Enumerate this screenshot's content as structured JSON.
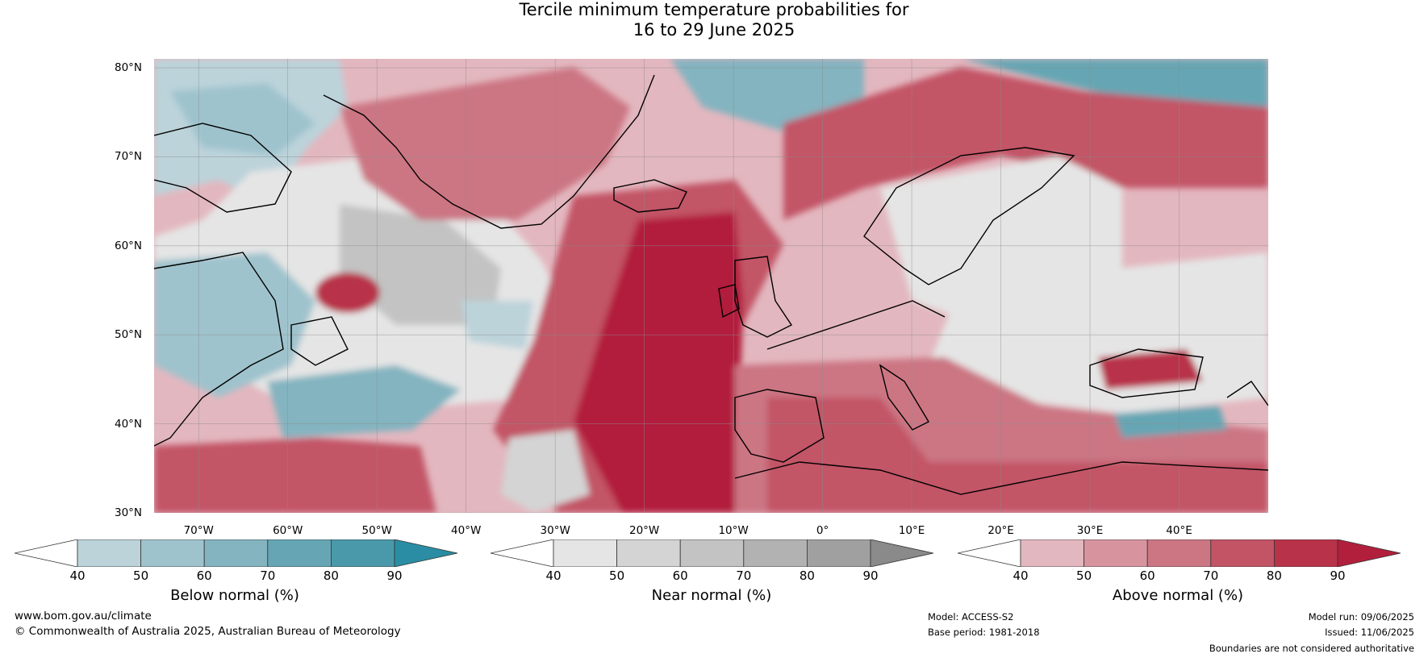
{
  "title_line1": "Tercile minimum temperature probabilities for",
  "title_line2": "16 to 29 June 2025",
  "lat_labels": [
    "80°N",
    "70°N",
    "60°N",
    "50°N",
    "40°N",
    "30°N"
  ],
  "lon_labels": [
    "70°W",
    "60°W",
    "50°W",
    "40°W",
    "30°W",
    "20°W",
    "10°W",
    "0°",
    "10°E",
    "20°E",
    "30°E",
    "40°E"
  ],
  "map_extent": {
    "lon_min": -75,
    "lon_max": 50,
    "lat_min": 30,
    "lat_max": 81
  },
  "colorbars": [
    {
      "label": "Below normal (%)",
      "ticks": [
        "40",
        "50",
        "60",
        "70",
        "80",
        "90"
      ],
      "colors": [
        "#ffffff",
        "#bcd3da",
        "#9fc3cd",
        "#83b4c0",
        "#66a6b4",
        "#4999ab",
        "#2a8da3"
      ]
    },
    {
      "label": "Near normal (%)",
      "ticks": [
        "40",
        "50",
        "60",
        "70",
        "80",
        "90"
      ],
      "colors": [
        "#ffffff",
        "#e5e5e5",
        "#d4d4d4",
        "#c3c3c3",
        "#b2b2b2",
        "#a0a0a0",
        "#8a8a8a"
      ]
    },
    {
      "label": "Above normal (%)",
      "ticks": [
        "40",
        "50",
        "60",
        "70",
        "80",
        "90"
      ],
      "colors": [
        "#ffffff",
        "#e3b7bf",
        "#d7949f",
        "#cc7683",
        "#c25466",
        "#b8334a",
        "#b21f3c"
      ]
    }
  ],
  "footer": {
    "website": "www.bom.gov.au/climate",
    "copyright": "© Commonwealth of Australia 2025, Australian Bureau of Meteorology",
    "model": "Model: ACCESS-S2",
    "base_period": "Base period: 1981-2018",
    "model_run": "Model run: 09/06/2025",
    "issued": "Issued: 11/06/2025",
    "disclaimer": "Boundaries are not considered authoritative"
  }
}
